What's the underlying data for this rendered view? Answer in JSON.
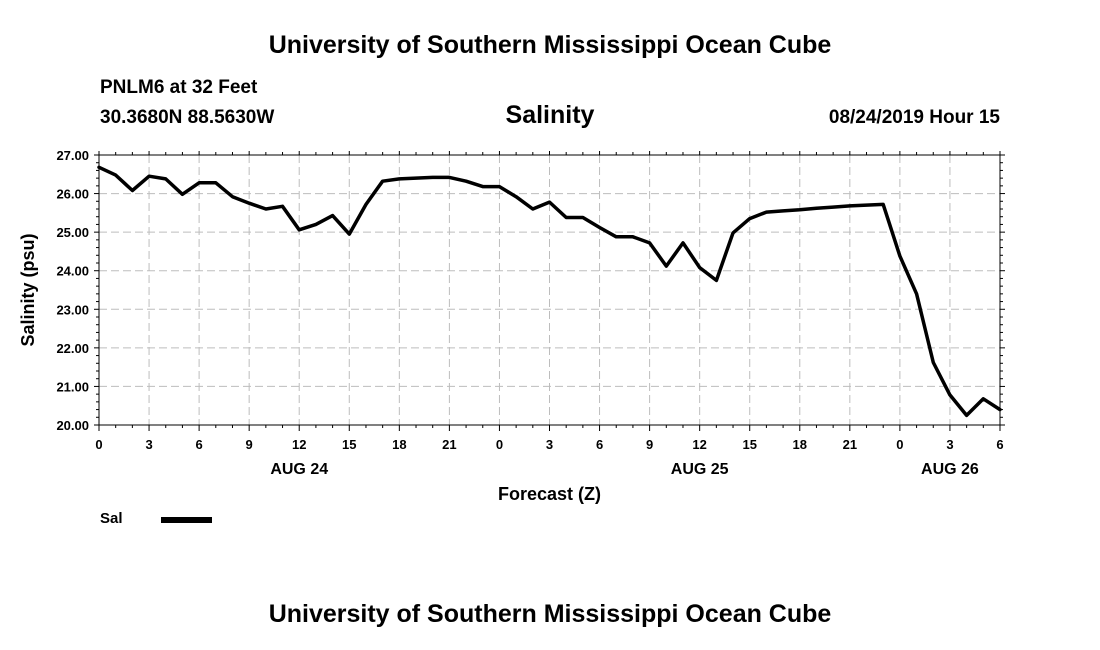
{
  "header": {
    "title": "University of Southern Mississippi Ocean Cube",
    "station": "PNLM6 at 32 Feet",
    "coords": "30.3680N 88.5630W",
    "timestamp": "08/24/2019 Hour 15"
  },
  "footer": {
    "title": "University of Southern Mississippi Ocean Cube"
  },
  "legend": {
    "label": "Sal",
    "color": "#000000"
  },
  "chart_data": {
    "type": "line",
    "title": "Salinity",
    "xlabel": "Forecast (Z)",
    "ylabel": "Salinity (psu)",
    "ylim": [
      20.0,
      27.0
    ],
    "xlim": [
      0,
      54
    ],
    "yticks": [
      "20.00",
      "21.00",
      "22.00",
      "23.00",
      "24.00",
      "25.00",
      "26.00",
      "27.00"
    ],
    "xticks": [
      "0",
      "3",
      "6",
      "9",
      "12",
      "15",
      "18",
      "21",
      "0",
      "3",
      "6",
      "9",
      "12",
      "15",
      "18",
      "21",
      "0",
      "3",
      "6"
    ],
    "day_labels": [
      {
        "label": "AUG 24",
        "hour": 12
      },
      {
        "label": "AUG 25",
        "hour": 36
      },
      {
        "label": "AUG 26",
        "hour": 51
      }
    ],
    "grid": true,
    "legend_position": "bottom-left",
    "series": [
      {
        "name": "Sal",
        "color": "#000000",
        "x": [
          0,
          1,
          2,
          3,
          4,
          5,
          6,
          7,
          8,
          9,
          10,
          11,
          12,
          13,
          14,
          15,
          16,
          17,
          18,
          19,
          20,
          21,
          22,
          23,
          24,
          25,
          26,
          27,
          28,
          29,
          30,
          31,
          32,
          33,
          34,
          35,
          36,
          37,
          38,
          39,
          40,
          41,
          42,
          43,
          44,
          45,
          46,
          47,
          48,
          49,
          50,
          51,
          52,
          53,
          54
        ],
        "values": [
          26.68,
          26.48,
          26.08,
          26.45,
          26.38,
          25.98,
          26.28,
          26.28,
          25.92,
          25.75,
          25.6,
          25.67,
          25.06,
          25.2,
          25.43,
          24.95,
          25.72,
          26.32,
          26.38,
          26.4,
          26.42,
          26.42,
          26.32,
          26.18,
          26.18,
          25.92,
          25.6,
          25.78,
          25.38,
          25.38,
          25.12,
          24.88,
          24.88,
          24.72,
          24.12,
          24.72,
          24.08,
          23.75,
          24.98,
          25.35,
          25.52,
          25.55,
          25.58,
          25.62,
          25.65,
          25.68,
          25.7,
          25.72,
          24.38,
          23.4,
          21.62,
          20.78,
          20.25,
          20.68,
          20.4
        ]
      }
    ]
  }
}
